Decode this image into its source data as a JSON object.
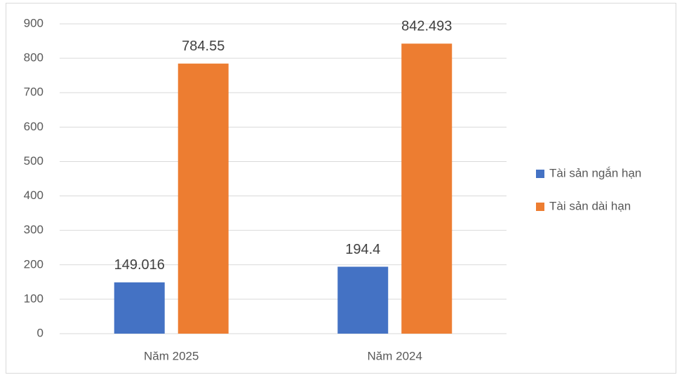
{
  "chart_data": {
    "type": "bar",
    "categories": [
      "Năm 2025",
      "Năm 2024"
    ],
    "series": [
      {
        "name": "Tài sản ngắn hạn",
        "color": "#4472c4",
        "values": [
          149.016,
          194.4
        ]
      },
      {
        "name": "Tài sản dài hạn",
        "color": "#ed7d31",
        "values": [
          784.55,
          842.493
        ]
      }
    ],
    "ylim": [
      0,
      900
    ],
    "yticks": [
      0,
      100,
      200,
      300,
      400,
      500,
      600,
      700,
      800,
      900
    ],
    "grid": true,
    "legend": "right",
    "data_labels": true
  }
}
